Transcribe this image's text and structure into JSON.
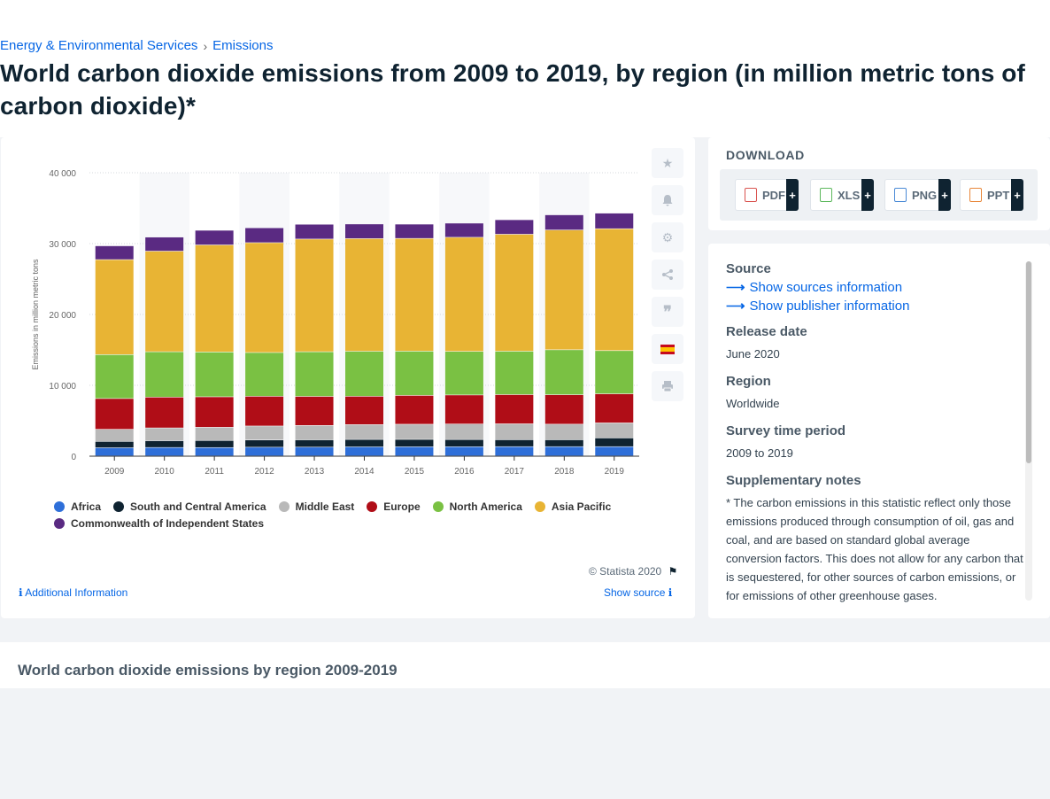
{
  "breadcrumb": {
    "item1": "Energy & Environmental Services",
    "separator": "›",
    "item2": "Emissions"
  },
  "page_title": "World carbon dioxide emissions from 2009 to 2019, by region (in million metric tons of carbon dioxide)*",
  "toolbar": {
    "icons": [
      "star-icon",
      "bell-icon",
      "gear-icon",
      "share-icon",
      "quote-icon",
      "flag-es-icon",
      "print-icon"
    ]
  },
  "download": {
    "title": "DOWNLOAD",
    "buttons": [
      {
        "label": "PDF",
        "plus": "+"
      },
      {
        "label": "XLS",
        "plus": "+"
      },
      {
        "label": "PNG",
        "plus": "+"
      },
      {
        "label": "PPT",
        "plus": "+"
      }
    ]
  },
  "info": {
    "source_h": "Source",
    "show_sources": "Show sources information",
    "show_publisher": "Show publisher information",
    "release_h": "Release date",
    "release_v": "June 2020",
    "region_h": "Region",
    "region_v": "Worldwide",
    "survey_h": "Survey time period",
    "survey_v": "2009 to 2019",
    "notes_h": "Supplementary notes",
    "notes_v": "* The carbon emissions in this statistic reflect only those emissions produced through consumption of oil, gas and coal, and are based on standard global average conversion factors. This does not allow for any carbon that is sequestered, for other sources of carbon emissions, or for emissions of other greenhouse gases."
  },
  "chart_footer": {
    "copyright": "© Statista 2020",
    "additional_info": "Additional Information",
    "show_source": "Show source"
  },
  "footer_title": "World carbon dioxide emissions by region 2009-2019",
  "chart_data": {
    "type": "bar",
    "stacked": true,
    "title": "",
    "xlabel": "",
    "ylabel": "Emissions in million metric tons",
    "ylim": [
      0,
      40000
    ],
    "yticks": [
      "0",
      "10 000",
      "20 000",
      "30 000",
      "40 000"
    ],
    "ytick_values": [
      0,
      10000,
      20000,
      30000,
      40000
    ],
    "grid": true,
    "legend_position": "bottom",
    "categories": [
      "2009",
      "2010",
      "2011",
      "2012",
      "2013",
      "2014",
      "2015",
      "2016",
      "2017",
      "2018",
      "2019"
    ],
    "series": [
      {
        "name": "Africa",
        "color": "#2e6fd9",
        "values": [
          1150,
          1190,
          1180,
          1230,
          1240,
          1280,
          1290,
          1300,
          1310,
          1310,
          1310
        ]
      },
      {
        "name": "South and Central America",
        "color": "#0f2331",
        "values": [
          900,
          950,
          1000,
          1020,
          1030,
          1040,
          1040,
          1010,
          980,
          970,
          1230
        ]
      },
      {
        "name": "Middle East",
        "color": "#b9b9b9",
        "values": [
          1700,
          1810,
          1860,
          1970,
          2030,
          2100,
          2140,
          2190,
          2240,
          2200,
          2120
        ]
      },
      {
        "name": "Europe",
        "color": "#b00d17",
        "values": [
          4350,
          4350,
          4300,
          4200,
          4100,
          4000,
          4070,
          4100,
          4120,
          4150,
          4100
        ]
      },
      {
        "name": "North America",
        "color": "#7ac143",
        "values": [
          6200,
          6400,
          6330,
          6170,
          6300,
          6350,
          6250,
          6150,
          6130,
          6350,
          6100
        ]
      },
      {
        "name": "Asia Pacific",
        "color": "#e8b434",
        "values": [
          13400,
          14200,
          15100,
          15500,
          15900,
          15900,
          15900,
          16100,
          16500,
          16900,
          17200
        ]
      },
      {
        "name": "Commonwealth of Independent States",
        "color": "#5a2a82",
        "values": [
          1950,
          1980,
          2070,
          2100,
          2090,
          2060,
          2020,
          2000,
          2050,
          2140,
          2200
        ]
      }
    ]
  }
}
